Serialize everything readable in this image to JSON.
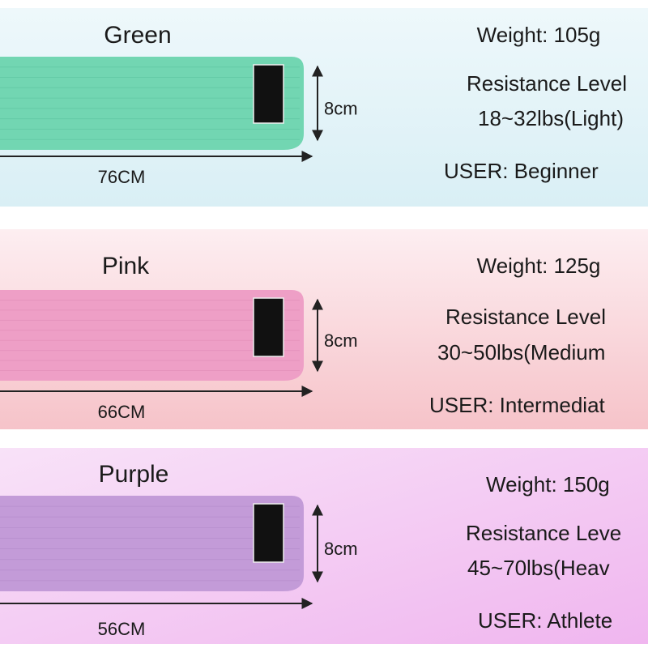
{
  "panels": [
    {
      "name": "Green",
      "weight": "Weight: 105g",
      "resistance_label": "Resistance Level",
      "resistance": "18~32lbs(Light)",
      "user": "USER: Beginner",
      "width": "8cm",
      "length": "76CM"
    },
    {
      "name": "Pink",
      "weight": "Weight: 125g",
      "resistance_label": "Resistance Level",
      "resistance": "30~50lbs(Medium",
      "user": "USER: Intermediat",
      "width": "8cm",
      "length": "66CM"
    },
    {
      "name": "Purple",
      "weight": "Weight: 150g",
      "resistance_label": "Resistance Leve",
      "resistance": "45~70lbs(Heav",
      "user": "USER: Athlete",
      "width": "8cm",
      "length": "56CM"
    }
  ]
}
